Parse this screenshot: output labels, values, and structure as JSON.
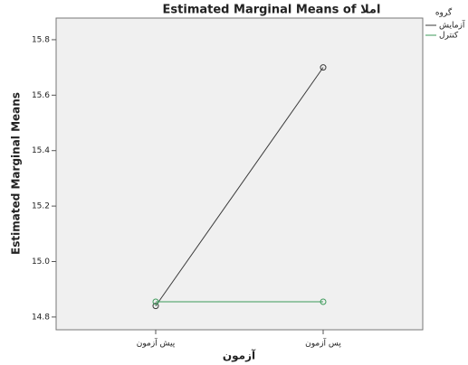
{
  "chart_data": {
    "type": "line",
    "title": "Estimated Marginal Means of املا",
    "x_label": "آزمون",
    "y_label": "Estimated Marginal Means",
    "categories": [
      "پیش آزمون",
      "پس آزمون"
    ],
    "legend_title": "گروه",
    "series": [
      {
        "name": "آزمایش",
        "color": "#3a3a3a",
        "values": [
          14.84,
          15.7
        ]
      },
      {
        "name": "کنترل",
        "color": "#3c9a5a",
        "values": [
          14.855,
          14.855
        ]
      }
    ],
    "ylim": [
      14.754,
      15.878
    ],
    "yticks": [
      {
        "value": 14.8,
        "label": "14.8"
      },
      {
        "value": 15.0,
        "label": "15.0"
      },
      {
        "value": 15.2,
        "label": "15.2"
      },
      {
        "value": 15.4,
        "label": "15.4"
      },
      {
        "value": 15.6,
        "label": "15.6"
      },
      {
        "value": 15.8,
        "label": "15.8"
      }
    ],
    "legend_position": "right"
  }
}
